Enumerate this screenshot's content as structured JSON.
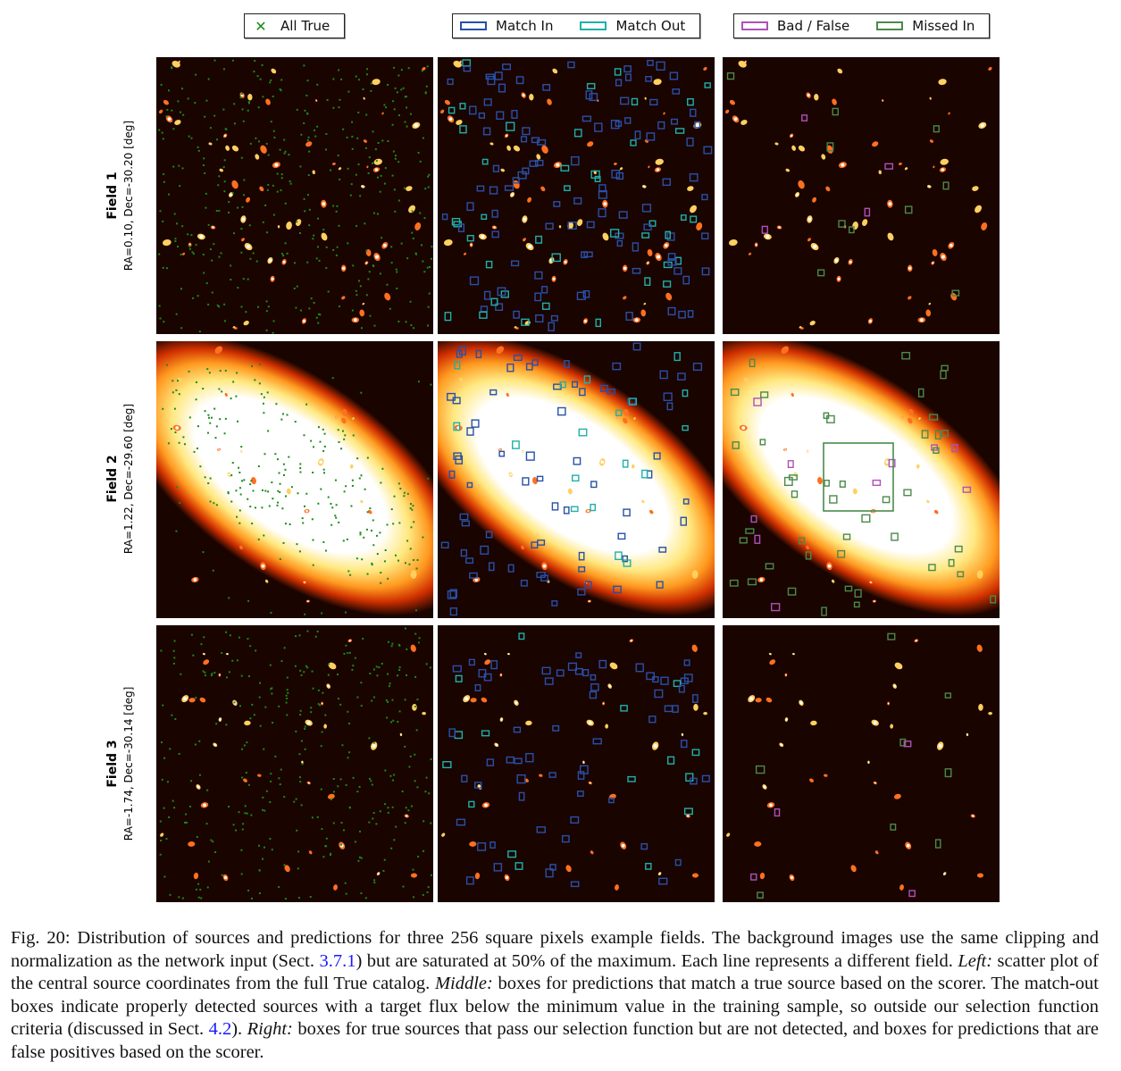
{
  "legends": {
    "left": [
      {
        "label": "All True",
        "color": "#1a8a1a",
        "marker": "x"
      }
    ],
    "middle": [
      {
        "label": "Match In",
        "color": "#2850a8"
      },
      {
        "label": "Match Out",
        "color": "#20b0a8"
      }
    ],
    "right": [
      {
        "label": "Bad / False",
        "color": "#b050b8"
      },
      {
        "label": "Missed In",
        "color": "#4a8a4a"
      }
    ]
  },
  "rows": [
    {
      "field": "Field 1",
      "coords": "RA=0.10, Dec=-30.20 [deg]"
    },
    {
      "field": "Field 2",
      "coords": "RA=1.22, Dec=-29.60 [deg]"
    },
    {
      "field": "Field 3",
      "coords": "RA=-1.74, Dec=-30.14 [deg]"
    }
  ],
  "caption": {
    "p1": "Fig. 20: Distribution of sources and predictions for three 256 square pixels example fields. The background images use the same clipping and normalization as the network input (Sect. ",
    "ref1": "3.7.1",
    "p2": ") but are saturated at 50% of the maximum. Each line represents a different field. ",
    "left_label": "Left:",
    "p3": " scatter plot of the central source coordinates from the full True catalog. ",
    "middle_label": "Middle:",
    "p4": " boxes for predictions that match a true source based on the scorer. The match-out boxes indicate properly detected sources with a target flux below the minimum value in the training sample, so outside our selection function criteria (discussed in Sect. ",
    "ref2": "4.2",
    "p5": "). ",
    "right_label": "Right:",
    "p6": " boxes for true sources that pass our selection function but are not detected, and boxes for predictions that are false positives based on the scorer."
  },
  "colors": {
    "background": "#1a0400",
    "true_marker": "#1a8a1a",
    "match_in": "#2850a8",
    "match_out": "#20b0a8",
    "bad_false": "#b050b8",
    "missed_in": "#4a8a4a"
  }
}
